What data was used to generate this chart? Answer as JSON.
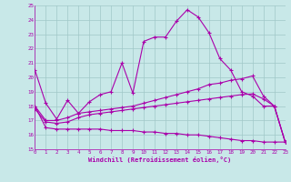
{
  "xlabel": "Windchill (Refroidissement éolien,°C)",
  "xlim": [
    0,
    23
  ],
  "ylim": [
    15,
    25
  ],
  "xticks": [
    0,
    1,
    2,
    3,
    4,
    5,
    6,
    7,
    8,
    9,
    10,
    11,
    12,
    13,
    14,
    15,
    16,
    17,
    18,
    19,
    20,
    21,
    22,
    23
  ],
  "yticks": [
    15,
    16,
    17,
    18,
    19,
    20,
    21,
    22,
    23,
    24,
    25
  ],
  "bg_color": "#c8e8e8",
  "line_color": "#aa00aa",
  "grid_color": "#a0c8c8",
  "line1_x": [
    0,
    1,
    2,
    3,
    4,
    5,
    6,
    7,
    8,
    9,
    10,
    11,
    12,
    13,
    14,
    15,
    16,
    17,
    18,
    19,
    20,
    21,
    22,
    23
  ],
  "line1_y": [
    20.5,
    18.2,
    17.1,
    18.4,
    17.5,
    18.3,
    18.8,
    19.0,
    21.0,
    18.9,
    22.5,
    22.8,
    22.8,
    23.9,
    24.7,
    24.2,
    23.1,
    21.3,
    20.5,
    19.0,
    18.7,
    18.0,
    18.0,
    15.5
  ],
  "line2_x": [
    0,
    1,
    2,
    3,
    4,
    5,
    6,
    7,
    8,
    9,
    10,
    11,
    12,
    13,
    14,
    15,
    16,
    17,
    18,
    19,
    20,
    21,
    22,
    23
  ],
  "line2_y": [
    18.0,
    17.0,
    17.0,
    17.2,
    17.5,
    17.6,
    17.7,
    17.8,
    17.9,
    18.0,
    18.2,
    18.4,
    18.6,
    18.8,
    19.0,
    19.2,
    19.5,
    19.6,
    19.8,
    19.9,
    20.1,
    18.7,
    18.0,
    15.5
  ],
  "line3_x": [
    0,
    1,
    2,
    3,
    4,
    5,
    6,
    7,
    8,
    9,
    10,
    11,
    12,
    13,
    14,
    15,
    16,
    17,
    18,
    19,
    20,
    21,
    22,
    23
  ],
  "line3_y": [
    17.8,
    16.9,
    16.8,
    16.9,
    17.2,
    17.4,
    17.5,
    17.6,
    17.7,
    17.8,
    17.9,
    18.0,
    18.1,
    18.2,
    18.3,
    18.4,
    18.5,
    18.6,
    18.7,
    18.8,
    18.85,
    18.5,
    18.0,
    15.5
  ],
  "line4_x": [
    0,
    1,
    2,
    3,
    4,
    5,
    6,
    7,
    8,
    9,
    10,
    11,
    12,
    13,
    14,
    15,
    16,
    17,
    18,
    19,
    20,
    21,
    22,
    23
  ],
  "line4_y": [
    18.0,
    16.5,
    16.4,
    16.4,
    16.4,
    16.4,
    16.4,
    16.3,
    16.3,
    16.3,
    16.2,
    16.2,
    16.1,
    16.1,
    16.0,
    16.0,
    15.9,
    15.8,
    15.7,
    15.6,
    15.6,
    15.5,
    15.5,
    15.5
  ]
}
